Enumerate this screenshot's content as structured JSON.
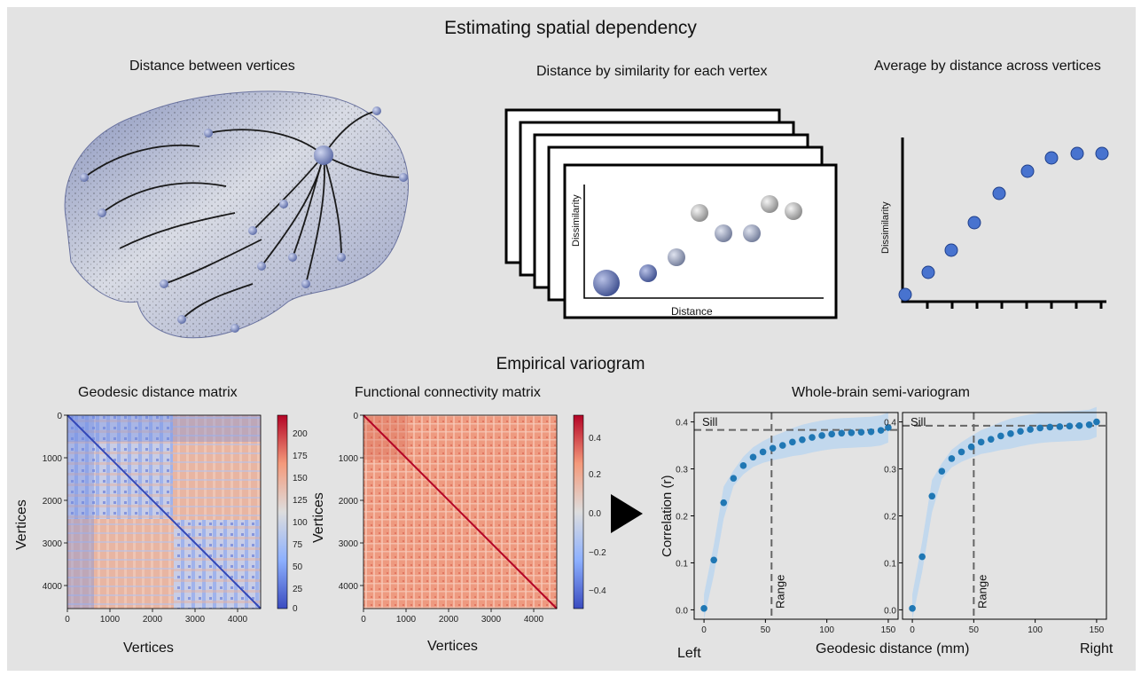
{
  "titles": {
    "main": "Estimating spatial dependency",
    "distance_between": "Distance between vertices",
    "distance_by_similarity": "Distance by similarity for each vertex",
    "average_by_distance": "Average by distance across vertices",
    "empirical": "Empirical variogram",
    "geodesic_matrix": "Geodesic distance matrix",
    "functional_matrix": "Functional connectivity matrix",
    "semivariogram": "Whole-brain semi-variogram"
  },
  "schematic": {
    "dissimilarity": "Dissimilarity",
    "distance": "Distance",
    "avg_ylabel": "Dissimilarity"
  },
  "geodesic": {
    "ylabel": "Vertices",
    "xlabel": "Vertices",
    "ticks": [
      "0",
      "1000",
      "2000",
      "3000",
      "4000"
    ],
    "colorbar_ticks": [
      "200",
      "175",
      "150",
      "125",
      "100",
      "75",
      "50",
      "25",
      "0"
    ]
  },
  "functional": {
    "ylabel": "Vertices",
    "xlabel": "Vertices",
    "ticks": [
      "0",
      "1000",
      "2000",
      "3000",
      "4000"
    ],
    "colorbar_ticks": [
      "0.4",
      "0.2",
      "0.0",
      "−0.2",
      "−0.4"
    ]
  },
  "variogram": {
    "ylabel": "Correlation (r)",
    "xlabel": "Geodesic distance (mm)",
    "left_label": "Left",
    "right_label": "Right",
    "sill": "Sill",
    "range": "Range",
    "yticks": [
      "0.4",
      "0.3",
      "0.2",
      "0.1",
      "0.0"
    ],
    "xticks": [
      "0",
      "50",
      "100",
      "150"
    ]
  },
  "chart_data": [
    {
      "type": "scatter",
      "title": "",
      "xlabel": "",
      "ylabel": "Correlation (r)",
      "xlim": [
        -8,
        158
      ],
      "ylim": [
        -0.02,
        0.42
      ],
      "x": [
        0,
        8,
        16,
        24,
        32,
        40,
        48,
        56,
        64,
        72,
        80,
        88,
        96,
        104,
        112,
        120,
        128,
        136,
        144,
        150
      ],
      "y": [
        0.003,
        0.106,
        0.228,
        0.28,
        0.307,
        0.325,
        0.336,
        0.344,
        0.35,
        0.357,
        0.362,
        0.367,
        0.371,
        0.374,
        0.376,
        0.377,
        0.378,
        0.379,
        0.382,
        0.388
      ],
      "sill": 0.383,
      "range": 55,
      "grid": false
    },
    {
      "type": "scatter",
      "title": "",
      "xlabel": "",
      "ylabel": "",
      "xlim": [
        -8,
        158
      ],
      "ylim": [
        -0.02,
        0.42
      ],
      "x": [
        0,
        8,
        16,
        24,
        32,
        40,
        48,
        56,
        64,
        72,
        80,
        88,
        96,
        104,
        112,
        120,
        128,
        136,
        144,
        150
      ],
      "y": [
        0.003,
        0.113,
        0.242,
        0.295,
        0.322,
        0.336,
        0.347,
        0.357,
        0.363,
        0.37,
        0.375,
        0.38,
        0.384,
        0.387,
        0.389,
        0.39,
        0.391,
        0.392,
        0.394,
        0.4
      ],
      "sill": 0.392,
      "range": 50,
      "grid": false
    }
  ]
}
